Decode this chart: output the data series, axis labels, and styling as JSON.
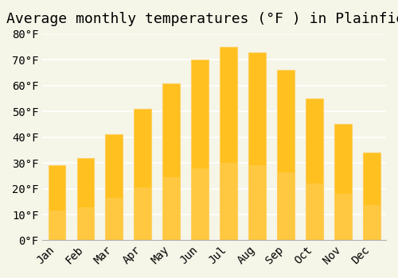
{
  "title": "Average monthly temperatures (°F ) in Plainfield",
  "months": [
    "Jan",
    "Feb",
    "Mar",
    "Apr",
    "May",
    "Jun",
    "Jul",
    "Aug",
    "Sep",
    "Oct",
    "Nov",
    "Dec"
  ],
  "values": [
    29,
    32,
    41,
    51,
    61,
    70,
    75,
    73,
    66,
    55,
    45,
    34
  ],
  "bar_color_top": "#FFC020",
  "bar_color_bottom": "#FFD060",
  "ylim": [
    0,
    80
  ],
  "ytick_step": 10,
  "background_color": "#F5F5E8",
  "grid_color": "#FFFFFF",
  "title_fontsize": 13,
  "tick_fontsize": 10,
  "font_family": "monospace"
}
